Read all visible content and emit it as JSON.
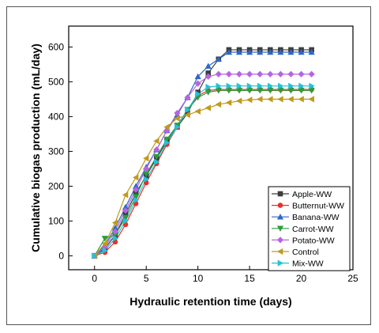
{
  "chart_data": {
    "type": "line",
    "title": "",
    "xlabel": "Hydraulic retention time (days)",
    "ylabel": "Cumulative biogas production (mL/day)",
    "xlim": [
      -2.5,
      25
    ],
    "ylim": [
      -40,
      660
    ],
    "xticks": [
      0,
      5,
      10,
      15,
      20,
      25
    ],
    "yticks": [
      0,
      100,
      200,
      300,
      400,
      500,
      600
    ],
    "grid": false,
    "legend_position": "bottom-right",
    "x": [
      0,
      1,
      2,
      3,
      4,
      5,
      6,
      7,
      8,
      9,
      10,
      11,
      12,
      13,
      14,
      15,
      16,
      17,
      18,
      19,
      20,
      21
    ],
    "series": [
      {
        "name": "Apple-WW",
        "color": "#3d3d3d",
        "marker": "square",
        "values": [
          0,
          20,
          60,
          120,
          180,
          230,
          280,
          330,
          370,
          410,
          470,
          525,
          565,
          592,
          592,
          592,
          592,
          592,
          592,
          592,
          592,
          592
        ]
      },
      {
        "name": "Butternut-WW",
        "color": "#e8302a",
        "marker": "circle",
        "values": [
          0,
          10,
          40,
          90,
          150,
          210,
          265,
          320,
          370,
          420,
          460,
          475,
          478,
          478,
          478,
          478,
          478,
          478,
          478,
          478,
          478,
          478
        ]
      },
      {
        "name": "Banana-WW",
        "color": "#2f67c9",
        "marker": "triangle-up",
        "values": [
          0,
          30,
          80,
          140,
          200,
          255,
          305,
          360,
          405,
          455,
          515,
          545,
          565,
          585,
          585,
          585,
          585,
          585,
          585,
          585,
          585,
          585
        ]
      },
      {
        "name": "Carrot-WW",
        "color": "#2a9e3b",
        "marker": "triangle-down",
        "values": [
          0,
          50,
          60,
          110,
          170,
          235,
          285,
          335,
          375,
          420,
          455,
          470,
          475,
          475,
          475,
          475,
          475,
          475,
          475,
          475,
          475,
          475
        ]
      },
      {
        "name": "Potato-WW",
        "color": "#b565e0",
        "marker": "diamond",
        "values": [
          0,
          25,
          70,
          130,
          190,
          250,
          305,
          360,
          410,
          455,
          495,
          515,
          522,
          522,
          522,
          522,
          522,
          522,
          522,
          522,
          522,
          522
        ]
      },
      {
        "name": "Control",
        "color": "#c19a1b",
        "marker": "triangle-left",
        "values": [
          0,
          35,
          95,
          175,
          225,
          280,
          330,
          370,
          395,
          405,
          415,
          425,
          435,
          440,
          445,
          448,
          450,
          450,
          450,
          450,
          450,
          450
        ]
      },
      {
        "name": "Mix-WW",
        "color": "#22c3d6",
        "marker": "triangle-right",
        "values": [
          0,
          15,
          50,
          100,
          160,
          220,
          270,
          325,
          370,
          420,
          465,
          485,
          488,
          488,
          488,
          488,
          488,
          488,
          488,
          488,
          488,
          488
        ]
      }
    ]
  }
}
